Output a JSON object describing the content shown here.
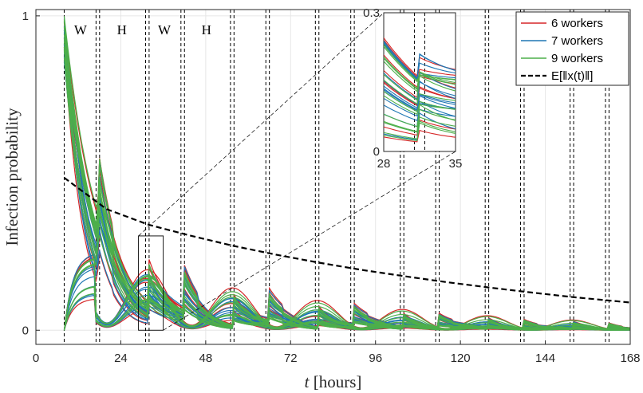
{
  "chart_data": {
    "type": "line",
    "xlabel_italic": "t",
    "xlabel_rest": " [hours]",
    "ylabel": "Infection probability",
    "xlim": [
      0,
      168
    ],
    "ylim": [
      -0.045,
      1.02
    ],
    "xticks": [
      0,
      24,
      48,
      72,
      96,
      120,
      144,
      168
    ],
    "yticks": [
      0,
      1
    ],
    "phase_labels": [
      {
        "text": "W",
        "x": 12.6
      },
      {
        "text": "H",
        "x": 24.3
      },
      {
        "text": "W",
        "x": 36.3
      },
      {
        "text": "H",
        "x": 48.2
      }
    ],
    "switch_times": [
      8,
      17,
      18,
      31,
      32,
      41,
      42,
      55,
      56,
      65,
      66,
      79,
      80,
      89,
      90,
      103,
      104,
      113,
      114,
      127,
      128,
      137,
      138,
      151,
      152,
      161,
      162
    ],
    "series": [
      {
        "name": "6 workers",
        "color": "#d62728",
        "count": 8
      },
      {
        "name": "7 workers",
        "color": "#1f77b4",
        "count": 14
      },
      {
        "name": "9 workers",
        "color": "#4daf4a",
        "count": 14
      }
    ],
    "expected_curve": {
      "name": "E[‖x(t)‖]",
      "x": [
        8,
        20,
        32,
        44,
        56,
        68,
        80,
        92,
        104,
        116,
        128,
        140,
        152,
        168
      ],
      "y": [
        0.485,
        0.385,
        0.335,
        0.3,
        0.268,
        0.24,
        0.215,
        0.192,
        0.172,
        0.153,
        0.136,
        0.12,
        0.105,
        0.088
      ]
    },
    "inset": {
      "xlim": [
        28,
        35
      ],
      "ylim": [
        0,
        0.3
      ],
      "xticks": [
        28,
        35
      ],
      "yticks": [
        0,
        0.3
      ],
      "zoom_box": {
        "x": [
          29,
          36
        ],
        "y": [
          0,
          0.3
        ]
      }
    },
    "legend": {
      "placement": "top-right",
      "entries": [
        "6 workers",
        "7 workers",
        "9 workers",
        "E[‖x(t)‖]"
      ]
    }
  }
}
